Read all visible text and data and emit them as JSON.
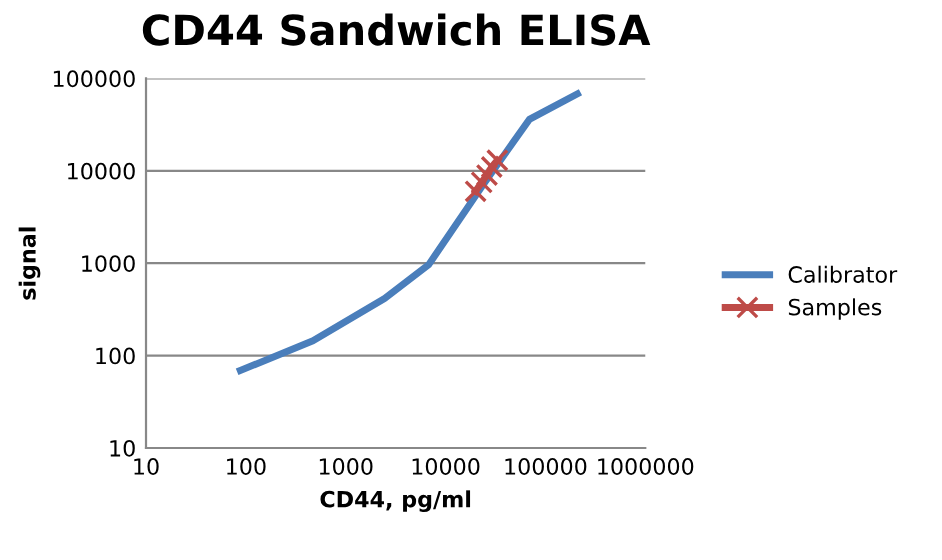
{
  "chart_data": {
    "type": "line",
    "title": "CD44 Sandwich ELISA",
    "xlabel": "CD44, pg/ml",
    "ylabel": "signal",
    "log": "xy",
    "xlim": [
      10,
      1000000
    ],
    "xticks": [
      10,
      100,
      1000,
      10000,
      100000,
      1000000
    ],
    "ylim": [
      10,
      100000
    ],
    "yticks": [
      10,
      100,
      1000,
      10000,
      100000
    ],
    "grid": "y",
    "legend": "right",
    "series": [
      {
        "name": "Calibrator",
        "color": "#4a7ebb",
        "x": [
          88,
          470,
          2450,
          6760,
          23000,
          69000,
          209000
        ],
        "values": [
          69,
          145,
          415,
          960,
          6700,
          36000,
          68000
        ],
        "marker": "none"
      },
      {
        "name": "Samples",
        "type": "scatter",
        "color": "#be4b48",
        "x": [
          20000,
          23000,
          26000,
          29000,
          33000
        ],
        "values": [
          6000,
          7500,
          9000,
          11000,
          13000
        ],
        "marker": "cross"
      }
    ]
  }
}
